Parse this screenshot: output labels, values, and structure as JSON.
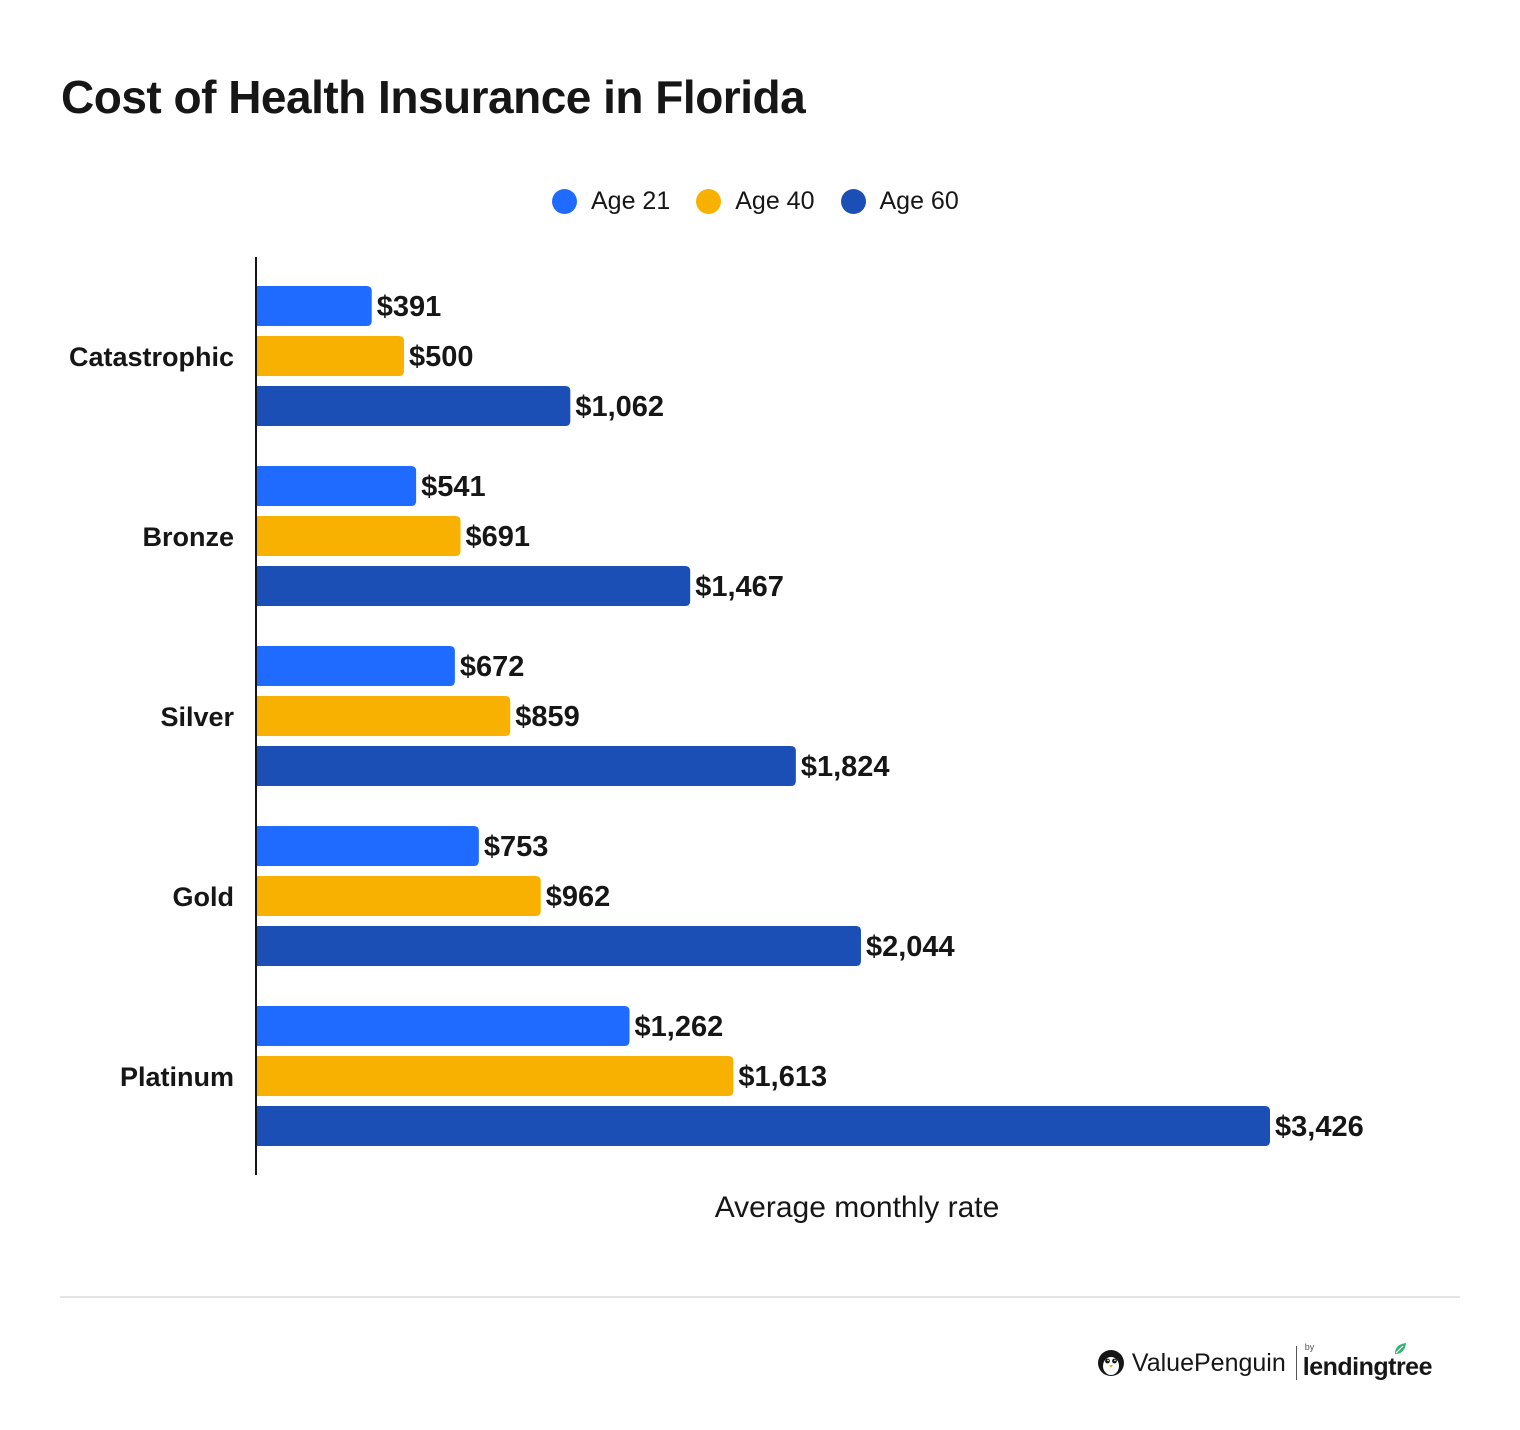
{
  "chart_data": {
    "type": "bar",
    "orientation": "horizontal",
    "title": "Cost of Health Insurance in Florida",
    "xlabel": "Average monthly rate",
    "ylabel": "",
    "categories": [
      "Catastrophic",
      "Bronze",
      "Silver",
      "Gold",
      "Platinum"
    ],
    "series": [
      {
        "name": "Age 21",
        "color": "#1f6bff",
        "values": [
          391,
          541,
          672,
          753,
          1262
        ],
        "labels": [
          "$391",
          "$541",
          "$672",
          "$753",
          "$1,262"
        ]
      },
      {
        "name": "Age 40",
        "color": "#f8b100",
        "values": [
          500,
          691,
          859,
          962,
          1613
        ],
        "labels": [
          "$500",
          "$691",
          "$859",
          "$962",
          "$1,613"
        ]
      },
      {
        "name": "Age 60",
        "color": "#1b4fb5",
        "values": [
          1062,
          1467,
          1824,
          2044,
          3426
        ],
        "labels": [
          "$1,062",
          "$1,467",
          "$1,824",
          "$2,044",
          "$3,426"
        ]
      }
    ],
    "xlim": [
      0,
      3426
    ],
    "grid": false,
    "legend_position": "top-center"
  },
  "brand": {
    "valuepenguin": "ValuePenguin",
    "by": "by",
    "lendingtree": "lendingtree"
  },
  "colors": {
    "text": "#161616",
    "axis": "#161616",
    "rule": "#e4e4e4",
    "leaf": "#2fb46b"
  }
}
